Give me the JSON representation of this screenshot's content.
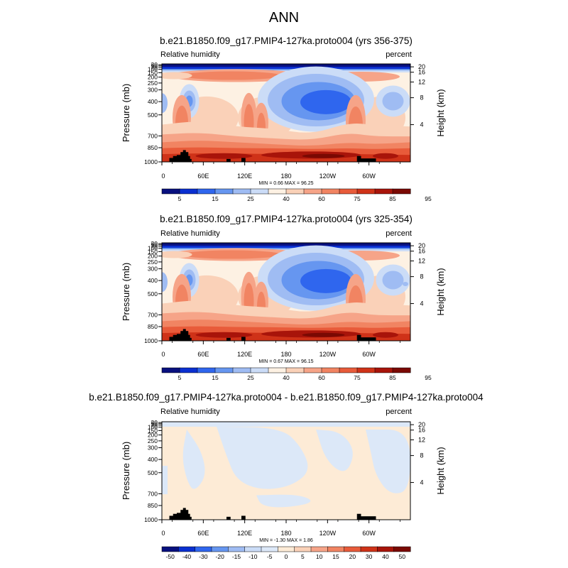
{
  "page_title": "ANN",
  "colors": {
    "rh_levels": [
      "#08107e",
      "#0a2fd0",
      "#2f66ee",
      "#6696f0",
      "#9fbcf3",
      "#cbdcf7",
      "#fdf1e3",
      "#fad1b8",
      "#f6a488",
      "#f18462",
      "#e85b3a",
      "#cf3218",
      "#a8140a",
      "#7a0903"
    ],
    "diff_levels": [
      "#08107e",
      "#0a2fd0",
      "#2f66ee",
      "#6696f0",
      "#9fbcf3",
      "#cbdcf7",
      "#dce8f8",
      "#fdebd6",
      "#fad1b8",
      "#f6a488",
      "#f18462",
      "#e85b3a",
      "#cf3218",
      "#a8140a",
      "#7a0903"
    ],
    "topography": "#000000"
  },
  "chart_data": [
    {
      "type": "heatmap",
      "title": "b.e21.B1850.f09_g17.PMIP4-127ka.proto004 (yrs 356-375)",
      "left_label": "Relative humidity",
      "right_label": "percent",
      "ylabel": "Pressure (mb)",
      "ylabel_right": "Height (km)",
      "x_ticks": [
        "0",
        "60E",
        "120E",
        "180",
        "120W",
        "60W"
      ],
      "y_ticks": [
        "1000",
        "850",
        "700",
        "500",
        "400",
        "300",
        "250",
        "200",
        "150",
        "100",
        "70",
        "50",
        "30"
      ],
      "y_ticks_right": [
        "20",
        "16",
        "12",
        "8",
        "4"
      ],
      "stats": "MIN =   0.66  MAX =   96.25",
      "colorbar_labels": [
        "5",
        "15",
        "25",
        "40",
        "60",
        "75",
        "85",
        "95"
      ]
    },
    {
      "type": "heatmap",
      "title": "b.e21.B1850.f09_g17.PMIP4-127ka.proto004 (yrs 325-354)",
      "left_label": "Relative humidity",
      "right_label": "percent",
      "ylabel": "Pressure (mb)",
      "ylabel_right": "Height (km)",
      "x_ticks": [
        "0",
        "60E",
        "120E",
        "180",
        "120W",
        "60W"
      ],
      "y_ticks": [
        "1000",
        "850",
        "700",
        "500",
        "400",
        "300",
        "250",
        "200",
        "150",
        "100",
        "70",
        "50",
        "30"
      ],
      "y_ticks_right": [
        "20",
        "16",
        "12",
        "8",
        "4"
      ],
      "stats": "MIN =   0.67  MAX =   96.15",
      "colorbar_labels": [
        "5",
        "15",
        "25",
        "40",
        "60",
        "75",
        "85",
        "95"
      ]
    },
    {
      "type": "heatmap",
      "title": "b.e21.B1850.f09_g17.PMIP4-127ka.proto004 - b.e21.B1850.f09_g17.PMIP4-127ka.proto004",
      "left_label": "Relative humidity",
      "right_label": "percent",
      "ylabel": "Pressure (mb)",
      "ylabel_right": "Height (km)",
      "x_ticks": [
        "0",
        "60E",
        "120E",
        "180",
        "120W",
        "60W"
      ],
      "y_ticks": [
        "1000",
        "850",
        "700",
        "500",
        "400",
        "300",
        "250",
        "200",
        "150",
        "100",
        "70",
        "50",
        "30"
      ],
      "y_ticks_right": [
        "20",
        "16",
        "12",
        "8",
        "4"
      ],
      "stats": "MIN =  -1.30  MAX =   1.86",
      "colorbar_labels": [
        "-50",
        "-40",
        "-30",
        "-20",
        "-15",
        "-10",
        "-5",
        "0",
        "5",
        "10",
        "15",
        "20",
        "30",
        "40",
        "50"
      ]
    }
  ]
}
